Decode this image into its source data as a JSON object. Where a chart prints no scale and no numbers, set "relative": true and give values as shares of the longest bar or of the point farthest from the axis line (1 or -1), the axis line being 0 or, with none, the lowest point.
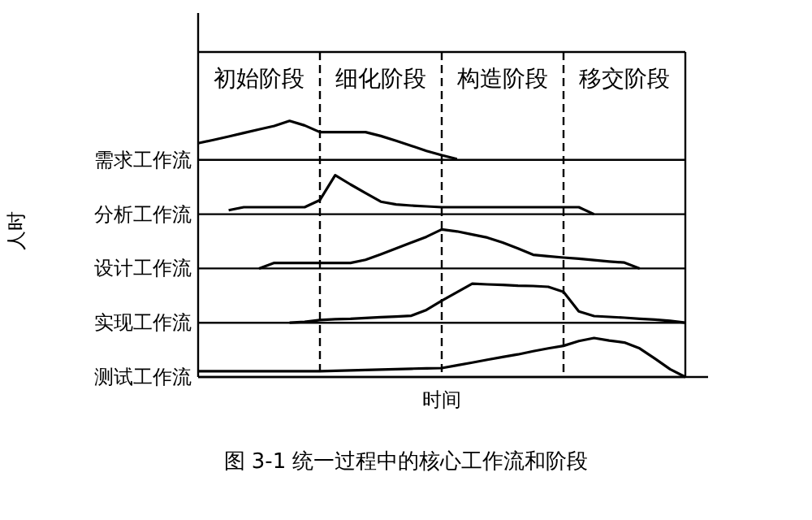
{
  "chart_data": [
    {
      "type": "line",
      "relative": true,
      "ylabel": "人时",
      "grid": "x",
      "annotations": [
        "初始阶段",
        "细化阶段",
        "构造阶段",
        "移交阶段"
      ],
      "categories": [
        null,
        null,
        null,
        null,
        null,
        null,
        null,
        null,
        null,
        null,
        null,
        null,
        null,
        null,
        null,
        null,
        null,
        null,
        null,
        null,
        null,
        null,
        null,
        null,
        null,
        null,
        null,
        null,
        null,
        null,
        null,
        null,
        null
      ],
      "series": [
        {
          "name": "需求工作流",
          "color": "#000000",
          "values": [
            0.43,
            0.51,
            0.6,
            0.69,
            0.78,
            0.87,
            1,
            0.88,
            0.71,
            0.71,
            0.71,
            0.71,
            0.61,
            0.49,
            0.36,
            0.23,
            0.12,
            0.02,
            null,
            null,
            null,
            null,
            null,
            null,
            null,
            null,
            null,
            null,
            null,
            null,
            null,
            null,
            null
          ]
        }
      ]
    },
    {
      "type": "line",
      "relative": true,
      "categories": [
        null,
        null,
        null,
        null,
        null,
        null,
        null,
        null,
        null,
        null,
        null,
        null,
        null,
        null,
        null,
        null,
        null,
        null,
        null,
        null,
        null,
        null,
        null,
        null,
        null,
        null,
        null,
        null,
        null,
        null,
        null,
        null,
        null
      ],
      "series": [
        {
          "name": "分析工作流",
          "color": "#000000",
          "values": [
            null,
            null,
            0.1,
            0.18,
            0.18,
            0.18,
            0.18,
            0.18,
            0.36,
            1,
            0.76,
            0.54,
            0.32,
            0.25,
            0.22,
            0.2,
            0.18,
            0.18,
            0.18,
            0.18,
            0.18,
            0.18,
            0.18,
            0.18,
            0.18,
            0.18,
            0,
            null,
            null,
            null,
            null,
            null,
            null
          ]
        }
      ]
    },
    {
      "type": "line",
      "relative": true,
      "categories": [
        null,
        null,
        null,
        null,
        null,
        null,
        null,
        null,
        null,
        null,
        null,
        null,
        null,
        null,
        null,
        null,
        null,
        null,
        null,
        null,
        null,
        null,
        null,
        null,
        null,
        null,
        null,
        null,
        null,
        null,
        null,
        null,
        null
      ],
      "series": [
        {
          "name": "设计工作流",
          "color": "#000000",
          "values": [
            null,
            null,
            null,
            null,
            0,
            0.14,
            0.14,
            0.14,
            0.14,
            0.14,
            0.14,
            0.22,
            0.36,
            0.51,
            0.66,
            0.81,
            1,
            0.95,
            0.87,
            0.79,
            0.66,
            0.51,
            0.35,
            0.31,
            0.28,
            0.25,
            0.21,
            0.18,
            0.15,
            0,
            null,
            null,
            null
          ]
        }
      ]
    },
    {
      "type": "line",
      "relative": true,
      "categories": [
        null,
        null,
        null,
        null,
        null,
        null,
        null,
        null,
        null,
        null,
        null,
        null,
        null,
        null,
        null,
        null,
        null,
        null,
        null,
        null,
        null,
        null,
        null,
        null,
        null,
        null,
        null,
        null,
        null,
        null,
        null,
        null,
        null
      ],
      "series": [
        {
          "name": "实现工作流",
          "color": "#000000",
          "values": [
            null,
            null,
            null,
            null,
            null,
            null,
            0,
            0.02,
            0.07,
            0.09,
            0.1,
            0.12,
            0.14,
            0.16,
            0.18,
            0.33,
            0.56,
            0.78,
            1,
            0.98,
            0.97,
            0.95,
            0.94,
            0.92,
            0.79,
            0.29,
            0.17,
            0.15,
            0.13,
            0.1,
            0.08,
            0.05,
            0
          ]
        }
      ]
    },
    {
      "type": "line",
      "relative": true,
      "xlabel": "时间",
      "annotations": [
        "图 3-1    统一过程中的核心工作流和阶段"
      ],
      "categories": [
        null,
        null,
        null,
        null,
        null,
        null,
        null,
        null,
        null,
        null,
        null,
        null,
        null,
        null,
        null,
        null,
        null,
        null,
        null,
        null,
        null,
        null,
        null,
        null,
        null,
        null,
        null,
        null,
        null,
        null,
        null,
        null,
        null
      ],
      "series": [
        {
          "name": "测试工作流",
          "color": "#000000",
          "values": [
            0.15,
            0.15,
            0.15,
            0.15,
            0.15,
            0.15,
            0.15,
            0.15,
            0.15,
            0.16,
            0.17,
            0.18,
            0.19,
            0.2,
            0.21,
            0.22,
            0.23,
            0.3,
            0.37,
            0.44,
            0.51,
            0.58,
            0.66,
            0.73,
            0.8,
            0.92,
            1,
            0.93,
            0.88,
            0.73,
            0.47,
            0.2,
            0
          ]
        }
      ]
    }
  ]
}
